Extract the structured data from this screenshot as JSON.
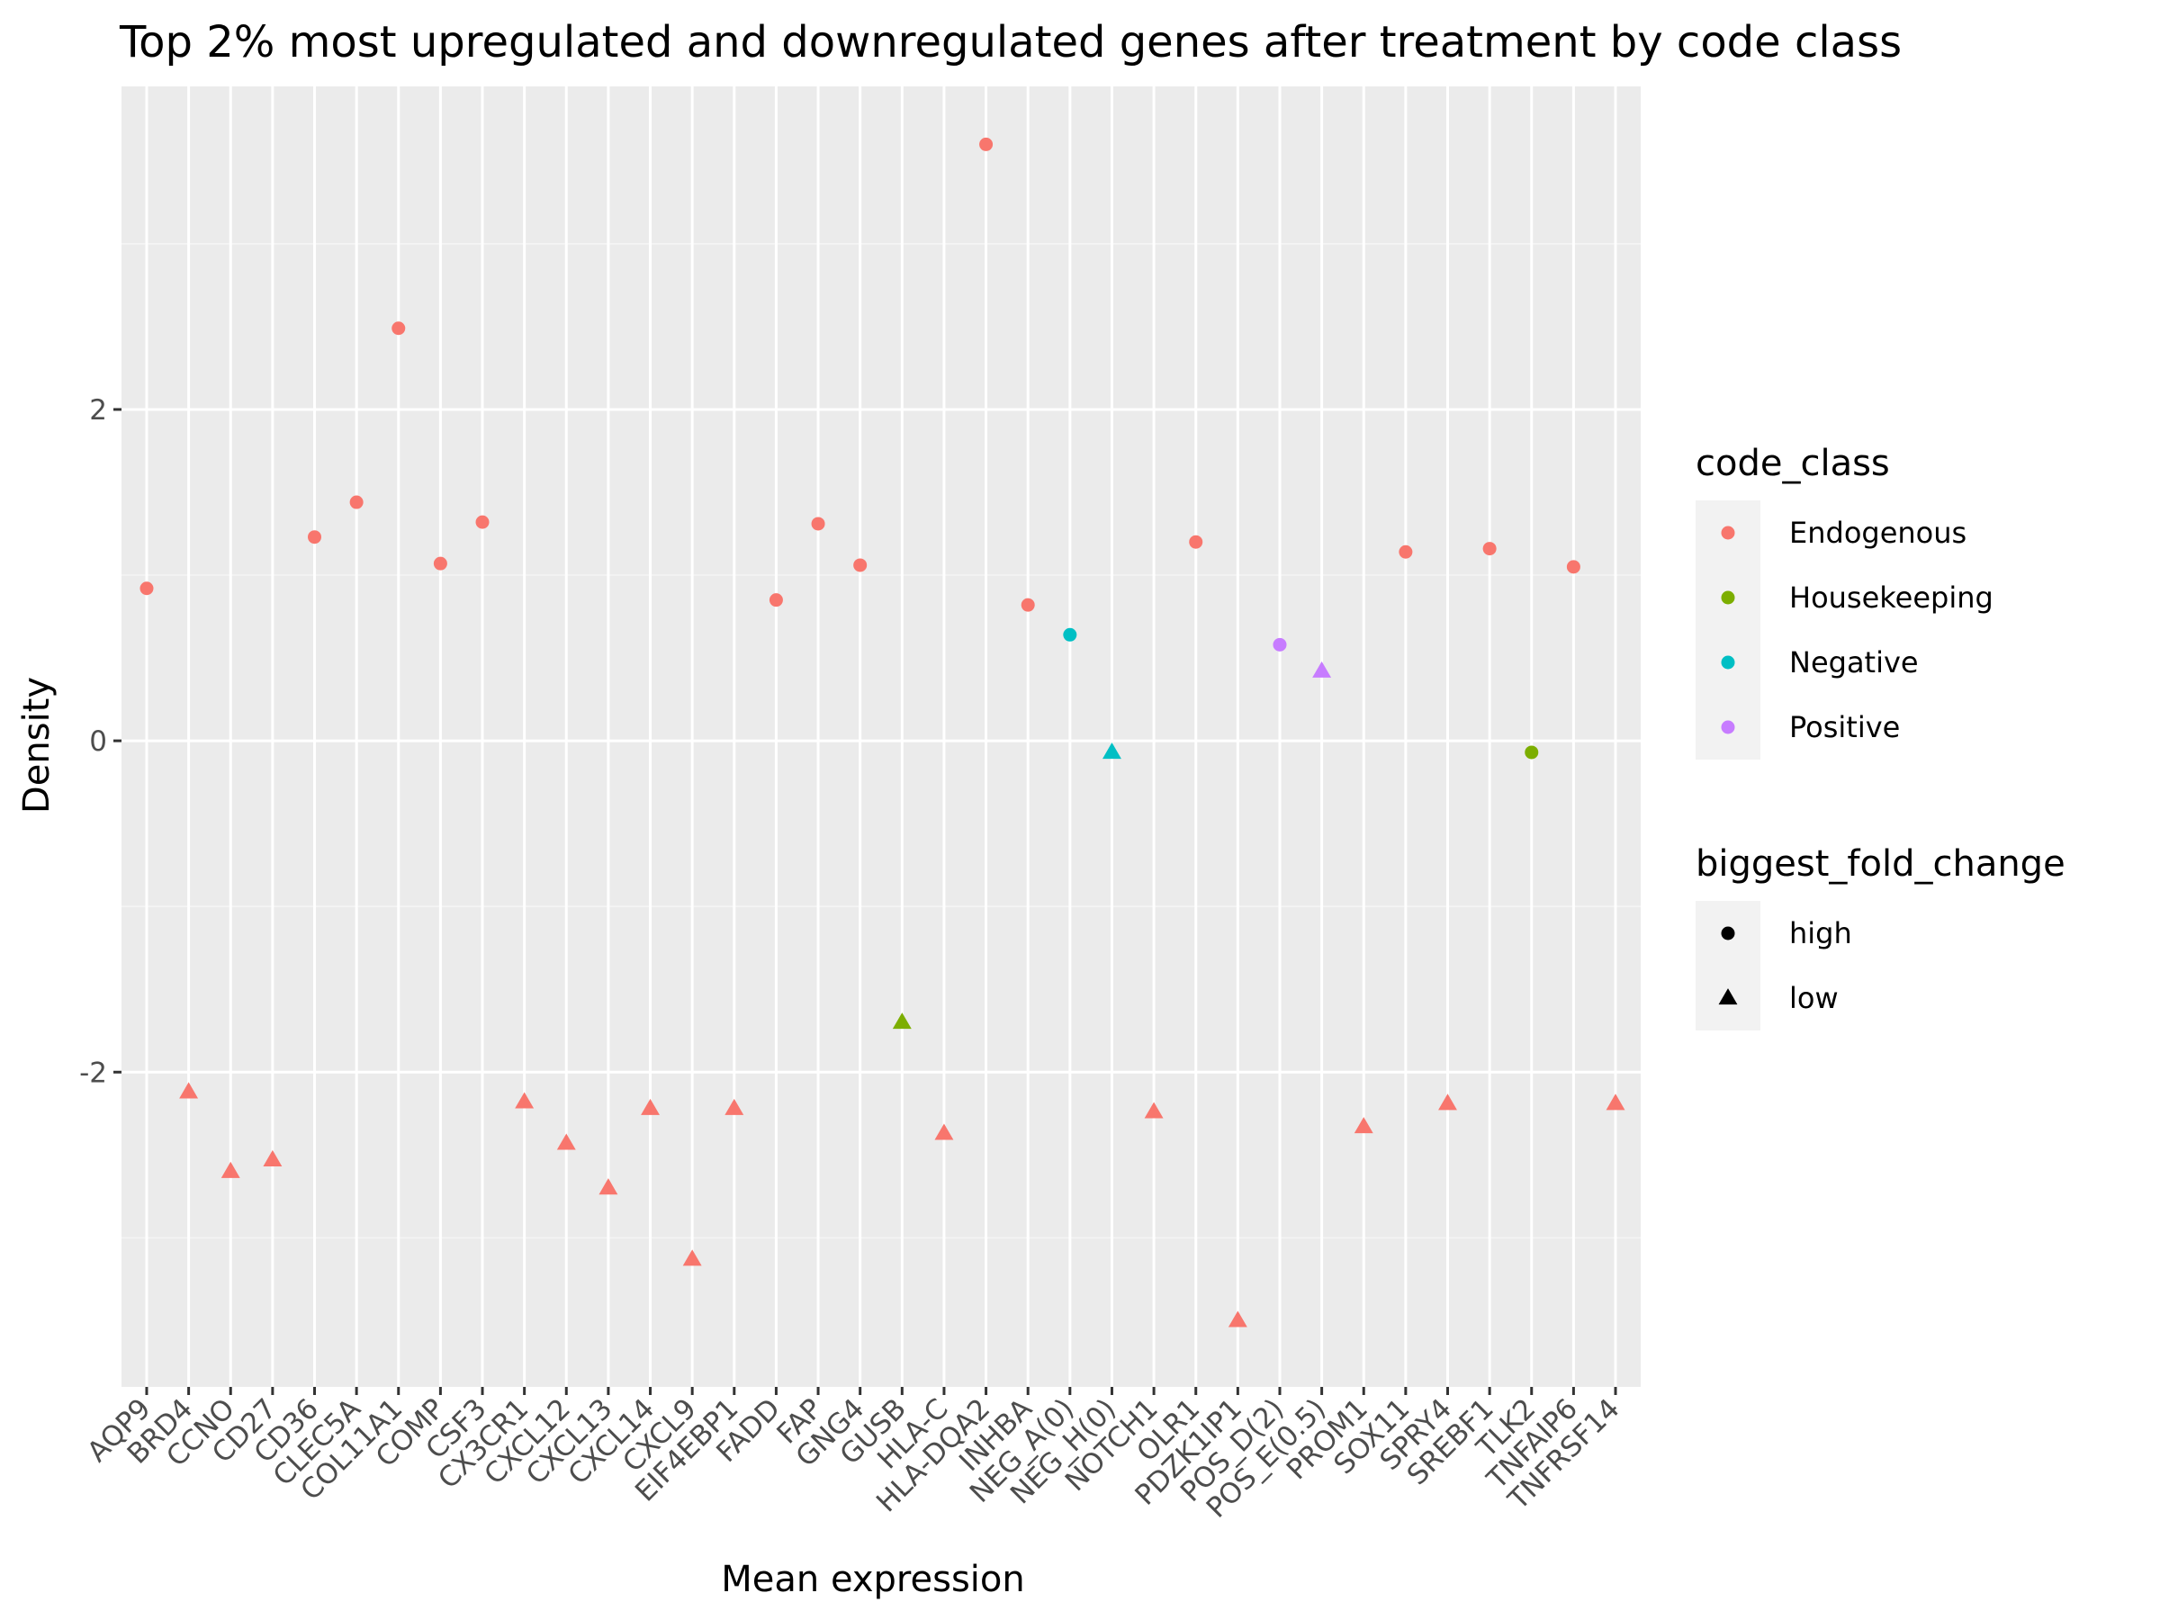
{
  "chart_data": {
    "type": "scatter",
    "title": "Top 2% most upregulated and downregulated genes after treatment by code class",
    "xlabel": "Mean expression",
    "ylabel": "Density",
    "ylim": [
      -3.9,
      3.95
    ],
    "yticks": [
      -2,
      0,
      2
    ],
    "ytick_labels": [
      "-2",
      "0",
      "2"
    ],
    "grid": true,
    "legend_position": "right",
    "categories": [
      "AQP9",
      "BRD4",
      "CCNO",
      "CD27",
      "CD36",
      "CLEC5A",
      "COL11A1",
      "COMP",
      "CSF3",
      "CX3CR1",
      "CXCL12",
      "CXCL13",
      "CXCL14",
      "CXCL9",
      "EIF4EBP1",
      "FADD",
      "FAP",
      "GNG4",
      "GUSB",
      "HLA-C",
      "HLA-DQA2",
      "INHBA",
      "NEG_A(0)",
      "NEG_H(0)",
      "NOTCH1",
      "OLR1",
      "PDZK1IP1",
      "POS_D(2)",
      "POS_E(0.5)",
      "PROM1",
      "SOX11",
      "SPRY4",
      "SREBF1",
      "TLK2",
      "TNFAIP6",
      "TNFRSF14"
    ],
    "points": [
      {
        "x": "AQP9",
        "y": 0.92,
        "code_class": "Endogenous",
        "biggest_fold_change": "high"
      },
      {
        "x": "BRD4",
        "y": -2.12,
        "code_class": "Endogenous",
        "biggest_fold_change": "low"
      },
      {
        "x": "CCNO",
        "y": -2.6,
        "code_class": "Endogenous",
        "biggest_fold_change": "low"
      },
      {
        "x": "CD27",
        "y": -2.53,
        "code_class": "Endogenous",
        "biggest_fold_change": "low"
      },
      {
        "x": "CD36",
        "y": 1.23,
        "code_class": "Endogenous",
        "biggest_fold_change": "high"
      },
      {
        "x": "CLEC5A",
        "y": 1.44,
        "code_class": "Endogenous",
        "biggest_fold_change": "high"
      },
      {
        "x": "COL11A1",
        "y": 2.49,
        "code_class": "Endogenous",
        "biggest_fold_change": "high"
      },
      {
        "x": "COMP",
        "y": 1.07,
        "code_class": "Endogenous",
        "biggest_fold_change": "high"
      },
      {
        "x": "CSF3",
        "y": 1.32,
        "code_class": "Endogenous",
        "biggest_fold_change": "high"
      },
      {
        "x": "CX3CR1",
        "y": -2.18,
        "code_class": "Endogenous",
        "biggest_fold_change": "low"
      },
      {
        "x": "CXCL12",
        "y": -2.43,
        "code_class": "Endogenous",
        "biggest_fold_change": "low"
      },
      {
        "x": "CXCL13",
        "y": -2.7,
        "code_class": "Endogenous",
        "biggest_fold_change": "low"
      },
      {
        "x": "CXCL14",
        "y": -2.22,
        "code_class": "Endogenous",
        "biggest_fold_change": "low"
      },
      {
        "x": "CXCL9",
        "y": -3.13,
        "code_class": "Endogenous",
        "biggest_fold_change": "low"
      },
      {
        "x": "EIF4EBP1",
        "y": -2.22,
        "code_class": "Endogenous",
        "biggest_fold_change": "low"
      },
      {
        "x": "FADD",
        "y": 0.85,
        "code_class": "Endogenous",
        "biggest_fold_change": "high"
      },
      {
        "x": "FAP",
        "y": 1.31,
        "code_class": "Endogenous",
        "biggest_fold_change": "high"
      },
      {
        "x": "GNG4",
        "y": 1.06,
        "code_class": "Endogenous",
        "biggest_fold_change": "high"
      },
      {
        "x": "GUSB",
        "y": -1.7,
        "code_class": "Housekeeping",
        "biggest_fold_change": "low"
      },
      {
        "x": "HLA-C",
        "y": -2.37,
        "code_class": "Endogenous",
        "biggest_fold_change": "low"
      },
      {
        "x": "HLA-DQA2",
        "y": 3.6,
        "code_class": "Endogenous",
        "biggest_fold_change": "high"
      },
      {
        "x": "INHBA",
        "y": 0.82,
        "code_class": "Endogenous",
        "biggest_fold_change": "high"
      },
      {
        "x": "NEG_A(0)",
        "y": 0.64,
        "code_class": "Negative",
        "biggest_fold_change": "high"
      },
      {
        "x": "NEG_H(0)",
        "y": -0.07,
        "code_class": "Negative",
        "biggest_fold_change": "low"
      },
      {
        "x": "NOTCH1",
        "y": -2.24,
        "code_class": "Endogenous",
        "biggest_fold_change": "low"
      },
      {
        "x": "OLR1",
        "y": 1.2,
        "code_class": "Endogenous",
        "biggest_fold_change": "high"
      },
      {
        "x": "PDZK1IP1",
        "y": -3.5,
        "code_class": "Endogenous",
        "biggest_fold_change": "low"
      },
      {
        "x": "POS_D(2)",
        "y": 0.58,
        "code_class": "Positive",
        "biggest_fold_change": "high"
      },
      {
        "x": "POS_E(0.5)",
        "y": 0.42,
        "code_class": "Positive",
        "biggest_fold_change": "low"
      },
      {
        "x": "PROM1",
        "y": -2.33,
        "code_class": "Endogenous",
        "biggest_fold_change": "low"
      },
      {
        "x": "SOX11",
        "y": 1.14,
        "code_class": "Endogenous",
        "biggest_fold_change": "high"
      },
      {
        "x": "SPRY4",
        "y": -2.19,
        "code_class": "Endogenous",
        "biggest_fold_change": "low"
      },
      {
        "x": "SREBF1",
        "y": 1.16,
        "code_class": "Endogenous",
        "biggest_fold_change": "high"
      },
      {
        "x": "TLK2",
        "y": -0.07,
        "code_class": "Housekeeping",
        "biggest_fold_change": "high"
      },
      {
        "x": "TNFAIP6",
        "y": 1.05,
        "code_class": "Endogenous",
        "biggest_fold_change": "high"
      },
      {
        "x": "TNFRSF14",
        "y": -2.19,
        "code_class": "Endogenous",
        "biggest_fold_change": "low"
      }
    ],
    "legend": {
      "color": {
        "title": "code_class",
        "items": [
          {
            "label": "Endogenous",
            "color": "#F8766D"
          },
          {
            "label": "Housekeeping",
            "color": "#7CAE00"
          },
          {
            "label": "Negative",
            "color": "#00BFC4"
          },
          {
            "label": "Positive",
            "color": "#C77CFF"
          }
        ]
      },
      "shape": {
        "title": "biggest_fold_change",
        "items": [
          {
            "label": "high",
            "shape": "circle"
          },
          {
            "label": "low",
            "shape": "triangle"
          }
        ]
      }
    },
    "colors": {
      "panel_background": "#EBEBEB",
      "grid_major": "#FFFFFF",
      "grid_minor": "#F5F5F5",
      "legend_key_background": "#F2F2F2",
      "tick_color": "#333333",
      "tick_label_color": "#4D4D4D"
    }
  }
}
